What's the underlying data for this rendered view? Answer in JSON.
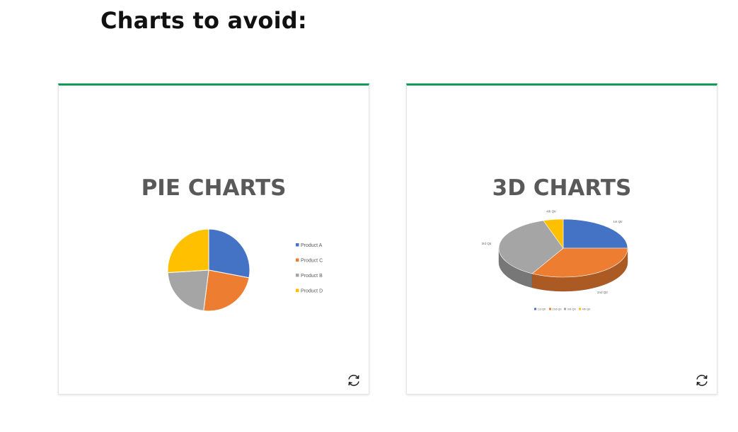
{
  "header": {
    "title": "Charts to avoid:"
  },
  "cards": [
    {
      "title": "PIE CHARTS",
      "chart_data": {
        "type": "pie",
        "slices": [
          {
            "label": "Product A",
            "value": 28,
            "color": "#4472C4"
          },
          {
            "label": "Product C",
            "value": 24,
            "color": "#ED7D31"
          },
          {
            "label": "Product B",
            "value": 22,
            "color": "#A5A5A5"
          },
          {
            "label": "Product D",
            "value": 26,
            "color": "#FFC000"
          }
        ],
        "legend_position": "right"
      }
    },
    {
      "title": "3D CHARTS",
      "chart_data": {
        "type": "pie",
        "style": "3d",
        "slices": [
          {
            "label": "1st Qtr",
            "value": 25,
            "color": "#4472C4"
          },
          {
            "label": "2nd Qtr",
            "value": 33,
            "color": "#ED7D31"
          },
          {
            "label": "3rd Qtr",
            "value": 37,
            "color": "#A5A5A5"
          },
          {
            "label": "4th Qtr",
            "value": 5,
            "color": "#FFC000"
          }
        ],
        "legend_position": "bottom"
      }
    }
  ],
  "flip_icon": "refresh-icon",
  "colors": {
    "accent": "#0f9d58",
    "title_text": "#595959"
  }
}
